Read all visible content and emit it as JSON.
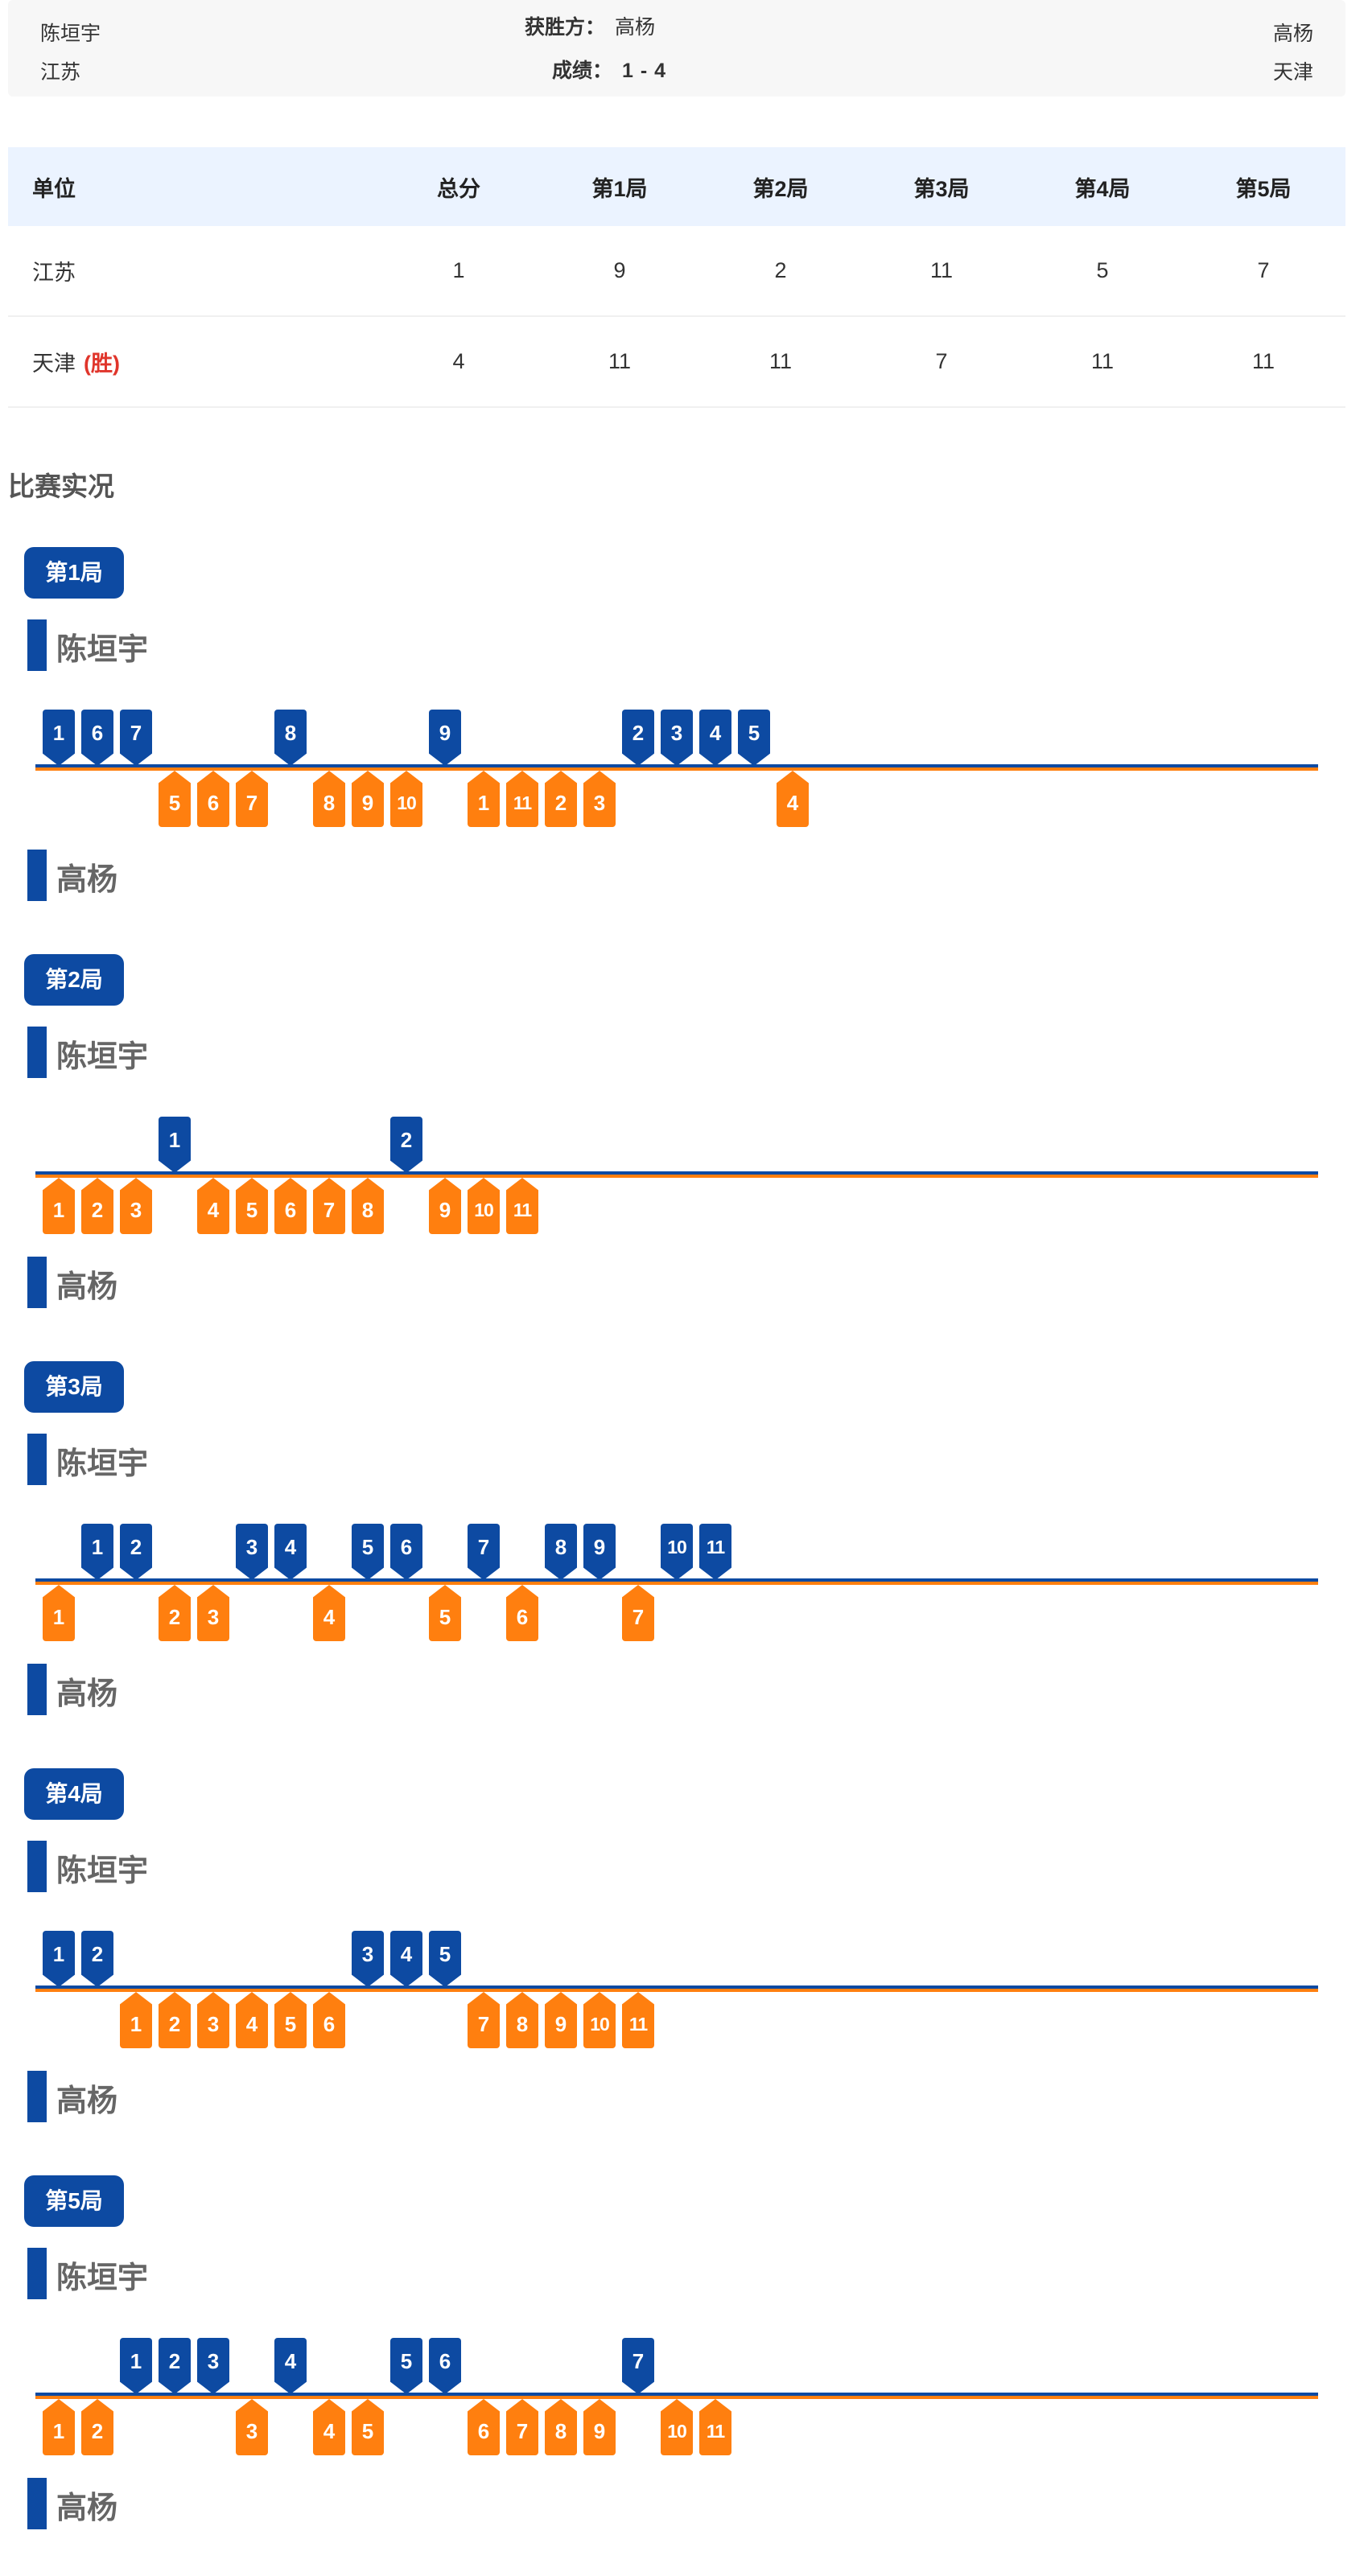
{
  "header": {
    "left_player": "陈垣宇",
    "left_unit": "江苏",
    "winner_label": "获胜方：",
    "winner_value": "高杨",
    "result_label": "成绩：",
    "result_value": "1 - 4",
    "right_player": "高杨",
    "right_unit": "天津"
  },
  "score_table": {
    "headers": [
      "单位",
      "总分",
      "第1局",
      "第2局",
      "第3局",
      "第4局",
      "第5局"
    ],
    "rows": [
      {
        "unit": "江苏",
        "win_tag": "",
        "total": "1",
        "games": [
          "9",
          "2",
          "11",
          "5",
          "7"
        ]
      },
      {
        "unit": "天津",
        "win_tag": "(胜)",
        "total": "4",
        "games": [
          "11",
          "11",
          "7",
          "11",
          "11"
        ]
      }
    ]
  },
  "live": {
    "title": "比赛实况",
    "top_player": "陈垣宇",
    "bottom_player": "高杨",
    "colors": {
      "top": "#0d4aa2",
      "bottom": "#ff7f0f"
    },
    "games": [
      {
        "label": "第1局",
        "sequence": [
          "B",
          "B",
          "B",
          "O",
          "O",
          "O",
          "B",
          "O",
          "O",
          "O",
          "B",
          "O",
          "O",
          "O",
          "O",
          "B",
          "B",
          "B",
          "B",
          "O"
        ],
        "top_labels": [
          "1",
          "6",
          "7",
          "8",
          "9",
          "2",
          "3",
          "4",
          "5"
        ],
        "bottom_labels": [
          "5",
          "6",
          "7",
          "8",
          "9",
          "10",
          "1",
          "11",
          "2",
          "3",
          "4"
        ]
      },
      {
        "label": "第2局",
        "sequence": [
          "O",
          "O",
          "O",
          "B",
          "O",
          "O",
          "O",
          "O",
          "O",
          "B",
          "O",
          "O",
          "O"
        ],
        "top_labels": [
          "1",
          "2"
        ],
        "bottom_labels": [
          "1",
          "2",
          "3",
          "4",
          "5",
          "6",
          "7",
          "8",
          "9",
          "10",
          "11"
        ]
      },
      {
        "label": "第3局",
        "sequence": [
          "O",
          "B",
          "B",
          "O",
          "O",
          "B",
          "B",
          "O",
          "B",
          "B",
          "O",
          "B",
          "O",
          "B",
          "B",
          "O",
          "B",
          "B"
        ],
        "top_labels": [
          "1",
          "2",
          "3",
          "4",
          "5",
          "6",
          "7",
          "8",
          "9",
          "10",
          "11"
        ],
        "bottom_labels": [
          "1",
          "2",
          "3",
          "4",
          "5",
          "6",
          "7"
        ]
      },
      {
        "label": "第4局",
        "sequence": [
          "B",
          "B",
          "O",
          "O",
          "O",
          "O",
          "O",
          "O",
          "B",
          "B",
          "B",
          "O",
          "O",
          "O",
          "O",
          "O"
        ],
        "top_labels": [
          "1",
          "2",
          "3",
          "4",
          "5"
        ],
        "bottom_labels": [
          "1",
          "2",
          "3",
          "4",
          "5",
          "6",
          "7",
          "8",
          "9",
          "10",
          "11"
        ]
      },
      {
        "label": "第5局",
        "sequence": [
          "O",
          "O",
          "B",
          "B",
          "B",
          "O",
          "B",
          "O",
          "O",
          "B",
          "B",
          "O",
          "O",
          "O",
          "O",
          "B",
          "O",
          "O"
        ],
        "top_labels": [
          "1",
          "2",
          "3",
          "4",
          "5",
          "6",
          "7"
        ],
        "bottom_labels": [
          "1",
          "2",
          "3",
          "4",
          "5",
          "6",
          "7",
          "8",
          "9",
          "10",
          "11"
        ]
      }
    ]
  }
}
